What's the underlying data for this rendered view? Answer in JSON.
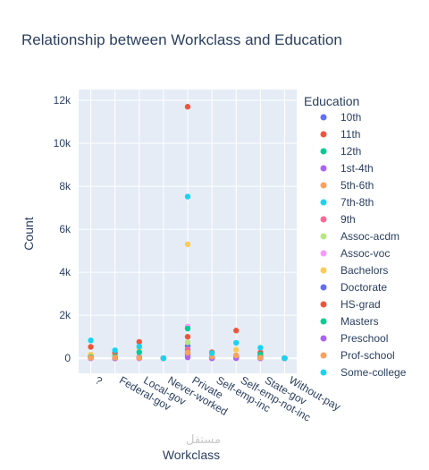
{
  "chart_data": {
    "type": "scatter",
    "title": "Relationship between Workclass and Education",
    "xlabel": "Workclass",
    "ylabel": "Count",
    "legend_title": "Education",
    "legend_placement": "right",
    "categories": [
      "?",
      "Federal-gov",
      "Local-gov",
      "Never-worked",
      "Private",
      "Self-emp-inc",
      "Self-emp-not-inc",
      "State-gov",
      "Without-pay"
    ],
    "y_ticks": [
      0,
      2000,
      4000,
      6000,
      8000,
      10000,
      12000
    ],
    "y_tick_labels": [
      "0",
      "2k",
      "4k",
      "6k",
      "8k",
      "10k",
      "12k"
    ],
    "ylim": [
      -700,
      12500
    ],
    "grid": true,
    "plot_bgcolor": "#E5ECF6",
    "series": [
      {
        "name": "10th",
        "color": "#636efa",
        "values": [
          90,
          10,
          30,
          2,
          580,
          20,
          80,
          20,
          0
        ]
      },
      {
        "name": "11th",
        "color": "#EF553B",
        "values": [
          120,
          10,
          40,
          1,
          1000,
          30,
          60,
          40,
          0
        ]
      },
      {
        "name": "12th",
        "color": "#00cc96",
        "values": [
          40,
          5,
          20,
          0,
          350,
          10,
          20,
          20,
          0
        ]
      },
      {
        "name": "1st-4th",
        "color": "#ab63fa",
        "values": [
          10,
          0,
          5,
          0,
          140,
          2,
          15,
          0,
          0
        ]
      },
      {
        "name": "5th-6th",
        "color": "#FFA15A",
        "values": [
          30,
          1,
          10,
          0,
          270,
          5,
          30,
          5,
          0
        ]
      },
      {
        "name": "7th-8th",
        "color": "#19d3f3",
        "values": [
          70,
          5,
          30,
          1,
          420,
          15,
          100,
          15,
          0
        ]
      },
      {
        "name": "9th",
        "color": "#FF6692",
        "values": [
          50,
          5,
          25,
          1,
          410,
          10,
          40,
          20,
          0
        ]
      },
      {
        "name": "Assoc-acdm",
        "color": "#B6E880",
        "values": [
          50,
          50,
          90,
          0,
          740,
          30,
          70,
          40,
          0
        ]
      },
      {
        "name": "Assoc-voc",
        "color": "#FF97FF",
        "values": [
          60,
          40,
          90,
          0,
          1480,
          40,
          120,
          50,
          0
        ]
      },
      {
        "name": "Bachelors",
        "color": "#FECB52",
        "values": [
          170,
          210,
          480,
          0,
          5300,
          270,
          400,
          270,
          0
        ]
      },
      {
        "name": "Doctorate",
        "color": "#636efa",
        "values": [
          10,
          20,
          30,
          0,
          220,
          40,
          50,
          90,
          0
        ]
      },
      {
        "name": "HS-grad",
        "color": "#EF553B",
        "values": [
          530,
          260,
          760,
          2,
          11700,
          280,
          1290,
          270,
          9
        ]
      },
      {
        "name": "Masters",
        "color": "#00cc96",
        "values": [
          50,
          70,
          280,
          0,
          1380,
          80,
          120,
          180,
          0
        ]
      },
      {
        "name": "Preschool",
        "color": "#ab63fa",
        "values": [
          5,
          0,
          1,
          0,
          40,
          0,
          1,
          1,
          0
        ]
      },
      {
        "name": "Prof-school",
        "color": "#FFA15A",
        "values": [
          20,
          30,
          20,
          0,
          260,
          80,
          130,
          30,
          0
        ]
      },
      {
        "name": "Some-college",
        "color": "#19d3f3",
        "values": [
          830,
          370,
          550,
          2,
          7520,
          240,
          720,
          490,
          4
        ]
      }
    ]
  }
}
